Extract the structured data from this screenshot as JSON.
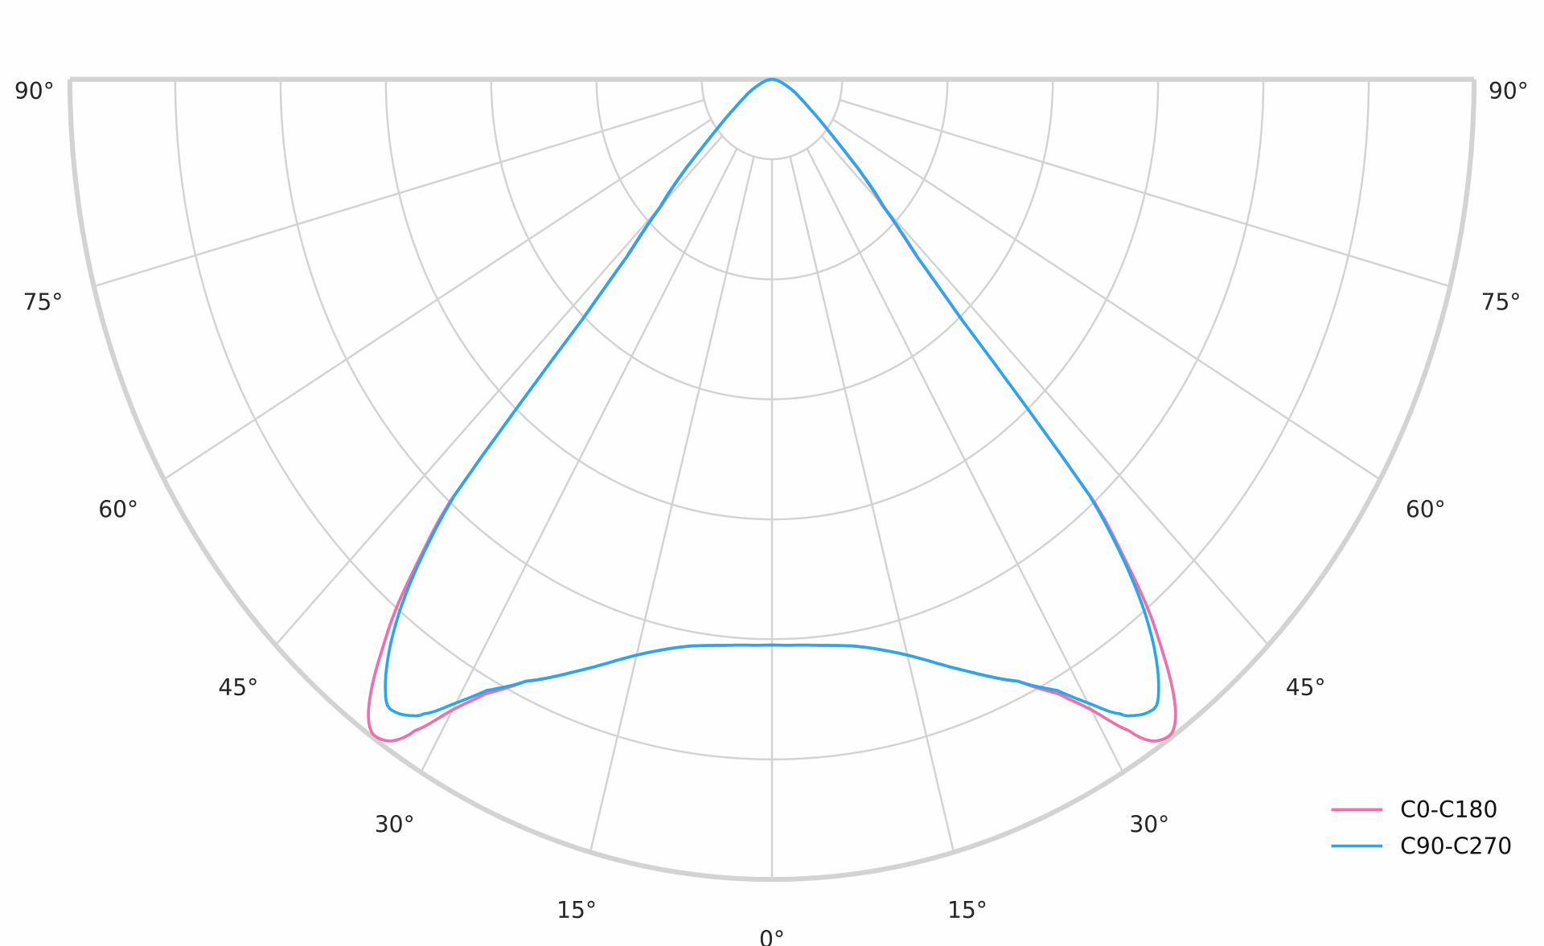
{
  "chart_data": {
    "type": "polar-line",
    "title": "",
    "angle_unit": "degrees",
    "angle_tick_labels": [
      "0°",
      "15°",
      "30°",
      "45°",
      "60°",
      "75°",
      "90°"
    ],
    "angle_ticks": [
      0,
      15,
      30,
      45,
      60,
      75,
      90
    ],
    "radial_range": [
      0,
      1
    ],
    "radial_grid": [
      0.1,
      0.25,
      0.4,
      0.55,
      0.7,
      0.85,
      1.0
    ],
    "radial_tick_labels_shown": false,
    "grid": true,
    "grid_color": "#d3d3d3",
    "symmetric_about_nadir": true,
    "legend_position": "bottom-right",
    "angles": [
      0,
      5,
      10,
      15,
      20,
      25,
      28,
      30,
      32,
      33,
      34,
      35,
      36,
      37,
      38,
      39,
      40,
      41,
      41.5,
      42,
      43,
      45,
      50,
      55,
      60,
      70,
      80,
      90
    ],
    "series": [
      {
        "name": "C0-C180",
        "color": "#f06ea9",
        "values": [
          0.707,
          0.71,
          0.72,
          0.745,
          0.785,
          0.83,
          0.87,
          0.91,
          0.96,
          0.985,
          0.995,
          0.995,
          0.978,
          0.945,
          0.9,
          0.85,
          0.78,
          0.7,
          0.55,
          0.4,
          0.3,
          0.22,
          0.12,
          0.07,
          0.045,
          0.02,
          0.008,
          0
        ]
      },
      {
        "name": "C90-C270",
        "color": "#2aa6ea",
        "values": [
          0.707,
          0.71,
          0.72,
          0.745,
          0.785,
          0.83,
          0.865,
          0.9,
          0.935,
          0.948,
          0.955,
          0.955,
          0.937,
          0.91,
          0.875,
          0.83,
          0.77,
          0.69,
          0.55,
          0.405,
          0.305,
          0.225,
          0.122,
          0.071,
          0.046,
          0.02,
          0.008,
          0
        ]
      }
    ]
  }
}
